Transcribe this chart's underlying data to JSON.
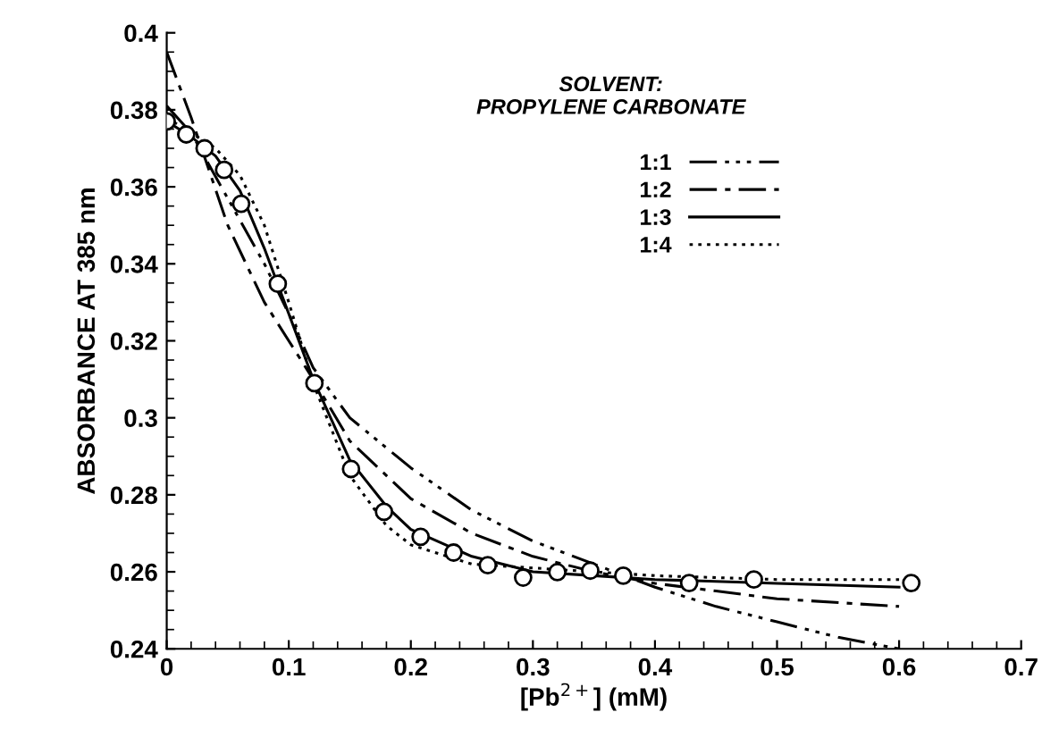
{
  "chart_data": {
    "type": "line",
    "xlabel": "[Pb$^{2+}$] (mM)",
    "ylabel": "ABSORBANCE AT 385 nm",
    "annotations": [
      "SOLVENT:\nPROPYLENE CARBONATE"
    ],
    "xlim": [
      0,
      0.7
    ],
    "xticks": [
      0,
      0.1,
      0.2,
      0.3,
      0.4,
      0.5,
      0.6,
      0.7
    ],
    "ylim": [
      0.24,
      0.4
    ],
    "yticks": [
      0.24,
      0.26,
      0.28,
      0.3,
      0.32,
      0.34,
      0.36,
      0.38,
      0.4
    ],
    "grid": false,
    "legend": "right",
    "series": [
      {
        "name": "1:1",
        "color": "#000000",
        "line_style": "dashdotdot",
        "marker": "none",
        "x": [
          0,
          0.02,
          0.05,
          0.08,
          0.1,
          0.12,
          0.15,
          0.2,
          0.25,
          0.3,
          0.35,
          0.4,
          0.45,
          0.5,
          0.55,
          0.6
        ],
        "values": [
          0.381,
          0.374,
          0.357,
          0.34,
          0.327,
          0.313,
          0.3,
          0.287,
          0.276,
          0.268,
          0.262,
          0.256,
          0.251,
          0.247,
          0.243,
          0.24
        ]
      },
      {
        "name": "1:2",
        "color": "#000000",
        "line_style": "dashdot",
        "marker": "none",
        "x": [
          0,
          0.02,
          0.05,
          0.08,
          0.1,
          0.12,
          0.15,
          0.2,
          0.25,
          0.3,
          0.35,
          0.4,
          0.45,
          0.5,
          0.6
        ],
        "values": [
          0.395,
          0.378,
          0.35,
          0.33,
          0.32,
          0.31,
          0.294,
          0.279,
          0.27,
          0.264,
          0.26,
          0.257,
          0.255,
          0.253,
          0.251
        ]
      },
      {
        "name": "1:3",
        "color": "#000000",
        "line_style": "solid",
        "marker": "none",
        "x": [
          0,
          0.02,
          0.04,
          0.06,
          0.08,
          0.1,
          0.12,
          0.15,
          0.18,
          0.2,
          0.25,
          0.3,
          0.35,
          0.4,
          0.5,
          0.6
        ],
        "values": [
          0.377,
          0.373,
          0.368,
          0.359,
          0.344,
          0.327,
          0.31,
          0.289,
          0.277,
          0.271,
          0.264,
          0.26,
          0.259,
          0.258,
          0.257,
          0.256
        ]
      },
      {
        "name": "1:4",
        "color": "#000000",
        "line_style": "dotted",
        "marker": "none",
        "x": [
          0,
          0.02,
          0.04,
          0.06,
          0.08,
          0.1,
          0.12,
          0.15,
          0.18,
          0.2,
          0.25,
          0.3,
          0.35,
          0.4,
          0.5,
          0.6
        ],
        "values": [
          0.378,
          0.374,
          0.37,
          0.363,
          0.35,
          0.33,
          0.309,
          0.285,
          0.272,
          0.267,
          0.262,
          0.261,
          0.26,
          0.259,
          0.258,
          0.258
        ]
      },
      {
        "type": "scatter",
        "color": "#000000",
        "marker": "circle",
        "x": [
          0,
          0.016,
          0.031,
          0.047,
          0.061,
          0.091,
          0.121,
          0.151,
          0.178,
          0.208,
          0.235,
          0.263,
          0.292,
          0.32,
          0.347,
          0.374,
          0.428,
          0.481,
          0.61
        ],
        "values": [
          0.377,
          0.3736,
          0.37,
          0.3644,
          0.3556,
          0.3348,
          0.309,
          0.2867,
          0.2756,
          0.2691,
          0.265,
          0.2617,
          0.2585,
          0.2599,
          0.2603,
          0.259,
          0.2571,
          0.258,
          0.2571
        ]
      }
    ]
  }
}
